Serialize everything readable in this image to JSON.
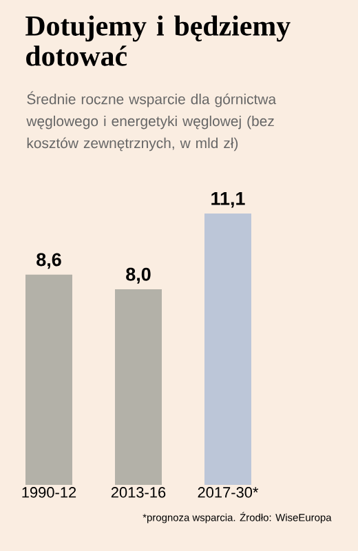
{
  "chart_data": {
    "type": "bar",
    "title": "Dotujemy i będziemy dotować",
    "subtitle": "Średnie roczne wsparcie dla górnictwa węglowego i energetyki węglowej (bez kosztów zewnętrznych, w mld zł)",
    "categories": [
      "1990-12",
      "2013-16",
      "2017-30*"
    ],
    "values": [
      8.6,
      8.0,
      11.1
    ],
    "value_labels": [
      "8,6",
      "8,0",
      "11,1"
    ],
    "colors": [
      "#b3b1a8",
      "#b3b1a8",
      "#bcc6d8"
    ],
    "annotations": [
      "*prognoza wsparcia. Źrodło: WiseEuropa"
    ]
  }
}
